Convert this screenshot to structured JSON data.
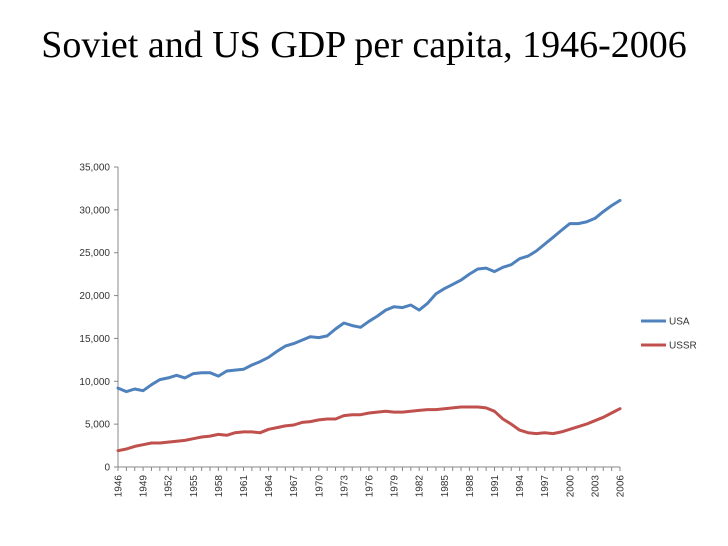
{
  "slide": {
    "title": "Soviet and US GDP per capita, 1946-2006"
  },
  "chart_data": {
    "type": "line",
    "title": "",
    "xlabel": "",
    "ylabel": "",
    "x": [
      1946,
      1947,
      1948,
      1949,
      1950,
      1951,
      1952,
      1953,
      1954,
      1955,
      1956,
      1957,
      1958,
      1959,
      1960,
      1961,
      1962,
      1963,
      1964,
      1965,
      1966,
      1967,
      1968,
      1969,
      1970,
      1971,
      1972,
      1973,
      1974,
      1975,
      1976,
      1977,
      1978,
      1979,
      1980,
      1981,
      1982,
      1983,
      1984,
      1985,
      1986,
      1987,
      1988,
      1989,
      1990,
      1991,
      1992,
      1993,
      1994,
      1995,
      1996,
      1997,
      1998,
      1999,
      2000,
      2001,
      2002,
      2003,
      2004,
      2005,
      2006
    ],
    "x_tick_labels": [
      "1946",
      "1949",
      "1952",
      "1955",
      "1958",
      "1961",
      "1964",
      "1967",
      "1970",
      "1973",
      "1976",
      "1979",
      "1982",
      "1985",
      "1988",
      "1991",
      "1994",
      "1997",
      "2000",
      "2003",
      "2006"
    ],
    "ylim": [
      0,
      35000
    ],
    "y_tick_labels": [
      "0",
      "5,000",
      "10,000",
      "15,000",
      "20,000",
      "25,000",
      "30,000",
      "35,000"
    ],
    "grid": false,
    "legend_position": "right",
    "series": [
      {
        "name": "USA",
        "color": "#4F81BD",
        "values": [
          9200,
          8800,
          9100,
          8900,
          9600,
          10200,
          10400,
          10700,
          10400,
          10900,
          11000,
          11000,
          10600,
          11200,
          11300,
          11400,
          11900,
          12300,
          12800,
          13500,
          14100,
          14400,
          14800,
          15200,
          15100,
          15300,
          16100,
          16800,
          16500,
          16300,
          17000,
          17600,
          18300,
          18700,
          18600,
          18900,
          18300,
          19100,
          20200,
          20800,
          21300,
          21800,
          22500,
          23100,
          23200,
          22800,
          23300,
          23600,
          24300,
          24600,
          25200,
          26000,
          26800,
          27600,
          28400,
          28400,
          28600,
          29000,
          29800,
          30500,
          31100
        ]
      },
      {
        "name": "USSR",
        "color": "#C0504D",
        "values": [
          1900,
          2100,
          2400,
          2600,
          2800,
          2800,
          2900,
          3000,
          3100,
          3300,
          3500,
          3600,
          3800,
          3700,
          4000,
          4100,
          4100,
          4000,
          4400,
          4600,
          4800,
          4900,
          5200,
          5300,
          5500,
          5600,
          5600,
          6000,
          6100,
          6100,
          6300,
          6400,
          6500,
          6400,
          6400,
          6500,
          6600,
          6700,
          6700,
          6800,
          6900,
          7000,
          7000,
          7000,
          6900,
          6500,
          5600,
          5000,
          4300,
          4000,
          3900,
          4000,
          3900,
          4100,
          4400,
          4700,
          5000,
          5400,
          5800,
          6300,
          6800
        ]
      }
    ]
  }
}
